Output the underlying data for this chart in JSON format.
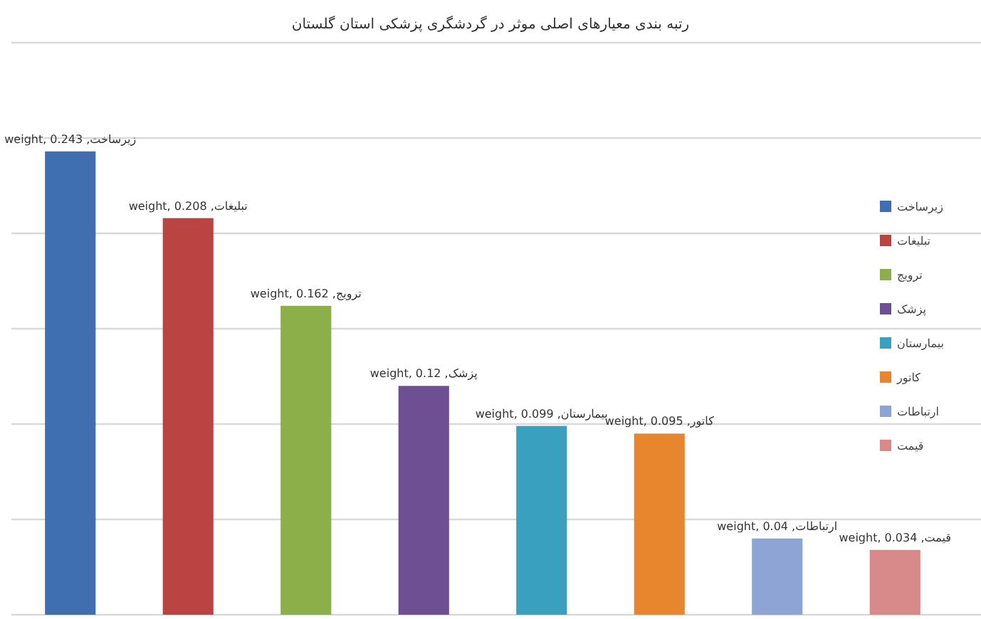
{
  "chart_data": {
    "type": "bar",
    "title": "رتبه بندی معیارهای اصلی موثر در گردشگری پزشکی استان گلستان",
    "categories": [
      null,
      null,
      null,
      null,
      null,
      null,
      null,
      null
    ],
    "series": [
      {
        "name": "زیرساخت",
        "color": "#3f6fb0",
        "values": [
          0.243,
          null,
          null,
          null,
          null,
          null,
          null,
          null
        ],
        "value_labels": [
          "weight, 0.243 ,زیرساخت",
          null,
          null,
          null,
          null,
          null,
          null,
          null
        ]
      },
      {
        "name": "تبلیغات",
        "color": "#b94441",
        "values": [
          null,
          0.208,
          null,
          null,
          null,
          null,
          null,
          null
        ],
        "value_labels": [
          null,
          "weight, 0.208 ,تبلیغات",
          null,
          null,
          null,
          null,
          null,
          null
        ]
      },
      {
        "name": "ترویج",
        "color": "#8daf4a",
        "values": [
          null,
          null,
          0.162,
          null,
          null,
          null,
          null,
          null
        ],
        "value_labels": [
          null,
          null,
          "weight, 0.162 ,ترویج",
          null,
          null,
          null,
          null,
          null
        ]
      },
      {
        "name": "پزشک",
        "color": "#6e4f93",
        "values": [
          null,
          null,
          null,
          0.12,
          null,
          null,
          null,
          null
        ],
        "value_labels": [
          null,
          null,
          null,
          "weight, 0.12 ,پزشک",
          null,
          null,
          null,
          null
        ]
      },
      {
        "name": "بیمارستان",
        "color": "#3aa0bf",
        "values": [
          null,
          null,
          null,
          null,
          0.099,
          null,
          null,
          null
        ],
        "value_labels": [
          null,
          null,
          null,
          null,
          "weight, 0.099 ,بیمارستان",
          null,
          null,
          null
        ]
      },
      {
        "name": "کاتور",
        "color": "#e8862e",
        "values": [
          null,
          null,
          null,
          null,
          null,
          0.095,
          null,
          null
        ],
        "value_labels": [
          null,
          null,
          null,
          null,
          null,
          "weight, 0.095 ,کاتور",
          null,
          null
        ]
      },
      {
        "name": "ارتباطات",
        "color": "#8ea4d4",
        "values": [
          null,
          null,
          null,
          null,
          null,
          null,
          0.04,
          null
        ],
        "value_labels": [
          null,
          null,
          null,
          null,
          null,
          null,
          "weight, 0.04 ,ارتباطات",
          null
        ]
      },
      {
        "name": "قیمت",
        "color": "#d88a8a",
        "values": [
          null,
          null,
          null,
          null,
          null,
          null,
          null,
          0.034
        ],
        "value_labels": [
          null,
          null,
          null,
          null,
          null,
          null,
          null,
          "weight, 0.034 ,قیمت"
        ]
      }
    ],
    "ylim": [
      0,
      0.3
    ],
    "yticks": [
      {
        "value": 0,
        "label": null
      },
      {
        "value": 0.05,
        "label": null
      },
      {
        "value": 0.1,
        "label": null
      },
      {
        "value": 0.15,
        "label": null
      },
      {
        "value": 0.2,
        "label": null
      },
      {
        "value": 0.25,
        "label": null
      },
      {
        "value": 0.3,
        "label": null
      }
    ],
    "stacked": true,
    "tick_labels": false,
    "grid": "y",
    "legend": "right"
  }
}
